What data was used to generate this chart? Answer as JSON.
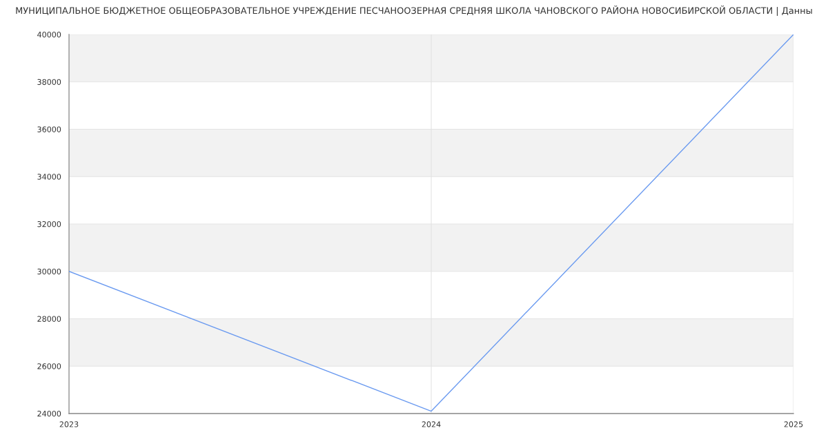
{
  "chart_data": {
    "type": "line",
    "title": "МУНИЦИПАЛЬНОЕ БЮДЖЕТНОЕ ОБЩЕОБРАЗОВАТЕЛЬНОЕ УЧРЕЖДЕНИЕ ПЕСЧАНООЗЕРНАЯ СРЕДНЯЯ ШКОЛА ЧАНОВСКОГО РАЙОНА НОВОСИБИРСКОЙ ОБЛАСТИ | Данны",
    "x": [
      2023,
      2024,
      2025
    ],
    "series": [
      {
        "color": "#6a9af0",
        "values": [
          30000,
          24100,
          40000
        ]
      }
    ],
    "xlim": [
      2023,
      2025
    ],
    "xticks": [
      2023,
      2024,
      2025
    ],
    "ylim": [
      24000,
      40000
    ],
    "yticks": [
      24000,
      26000,
      28000,
      30000,
      32000,
      34000,
      36000,
      38000,
      40000
    ],
    "bands": [
      {
        "axis": "y",
        "from": 26000,
        "to": 28000,
        "color": "#f2f2f2"
      },
      {
        "axis": "y",
        "from": 30000,
        "to": 32000,
        "color": "#f2f2f2"
      },
      {
        "axis": "y",
        "from": 34000,
        "to": 36000,
        "color": "#f2f2f2"
      },
      {
        "axis": "y",
        "from": 38000,
        "to": 40000,
        "color": "#f2f2f2"
      }
    ],
    "grid": true,
    "marker": "none",
    "line_style": "solid"
  }
}
